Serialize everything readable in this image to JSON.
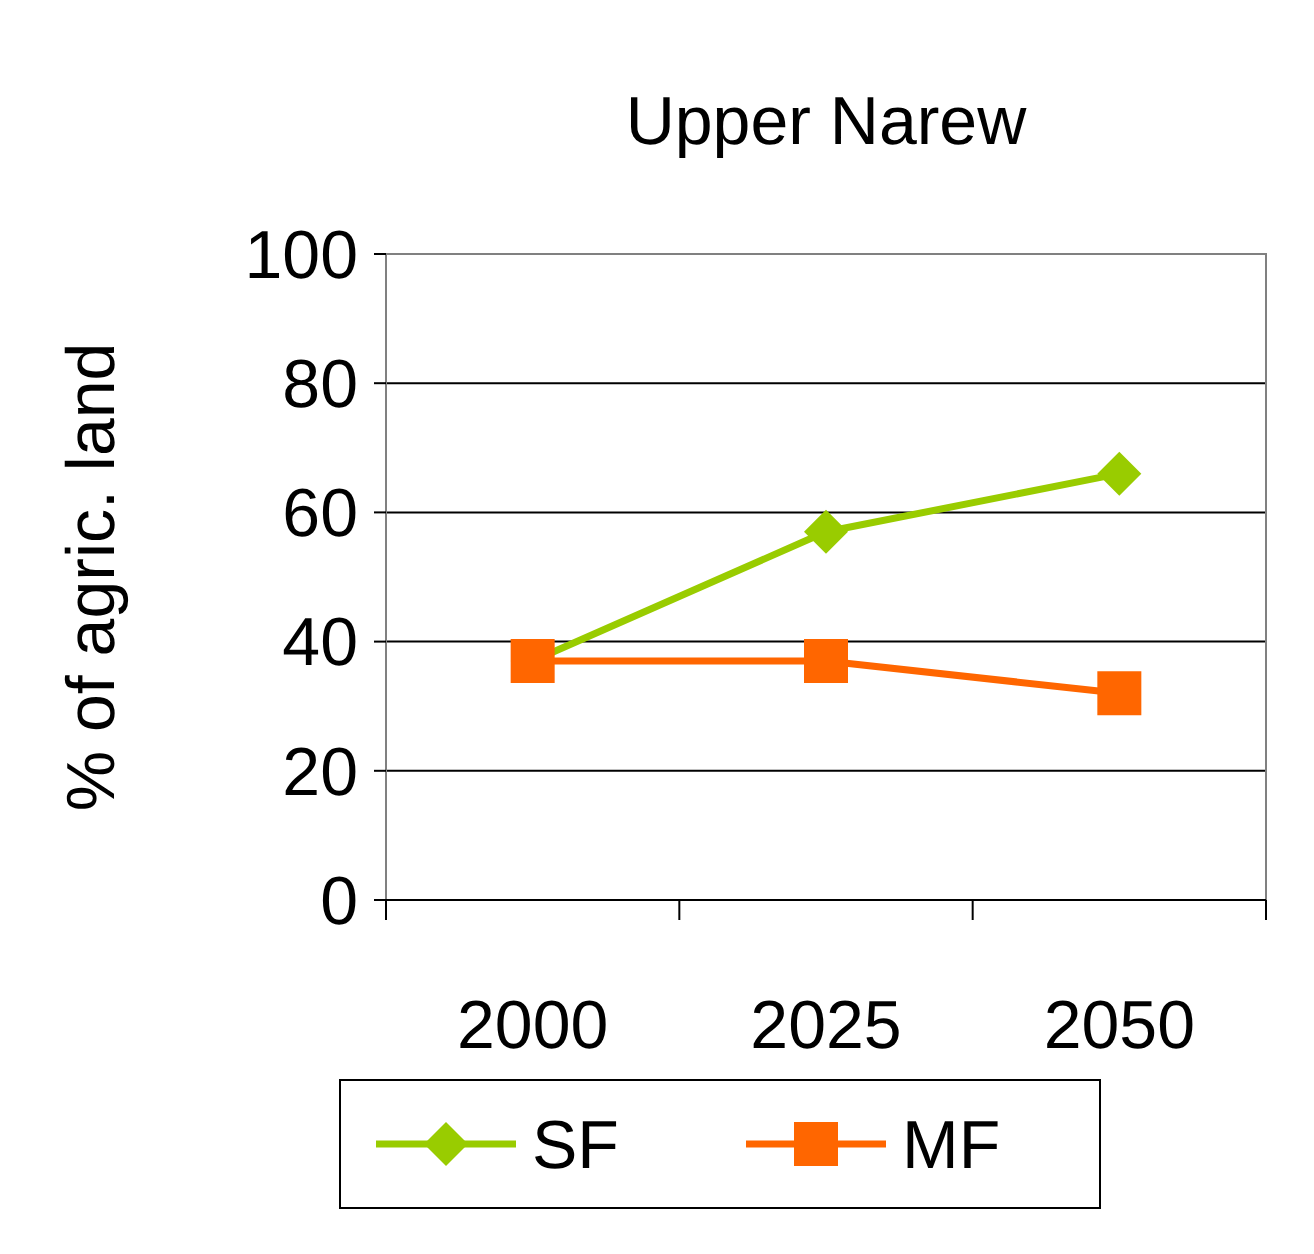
{
  "chart_data": {
    "type": "line",
    "title": "Upper Narew",
    "ylabel": "% of agric. land",
    "categories": [
      "2000",
      "2025",
      "2050"
    ],
    "series": [
      {
        "name": "SF",
        "color": "#99cc00",
        "values": [
          37,
          57,
          66
        ],
        "marker": "diamond"
      },
      {
        "name": "MF",
        "color": "#ff6600",
        "values": [
          37,
          37,
          32
        ],
        "marker": "square"
      }
    ],
    "ylim": [
      0,
      100
    ],
    "yticks": [
      0,
      20,
      40,
      60,
      80,
      100
    ],
    "grid": "y",
    "legend": "bottom"
  }
}
